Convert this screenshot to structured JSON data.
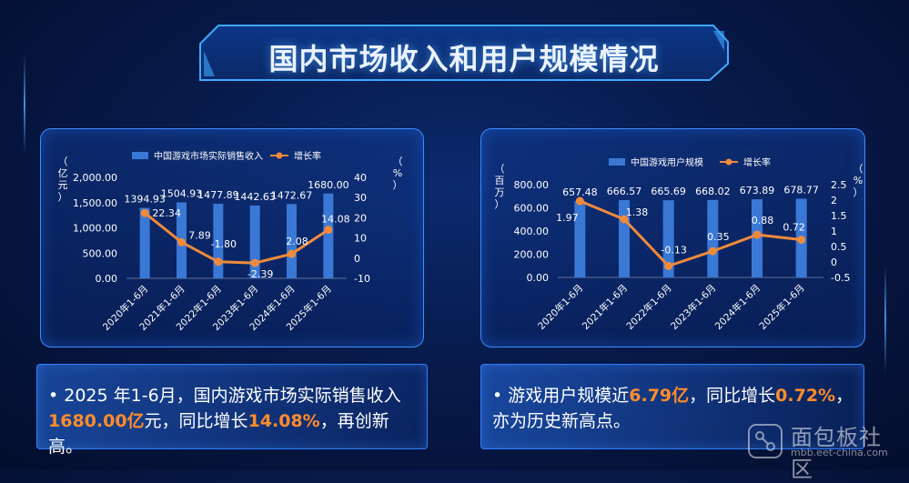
{
  "page": {
    "title": "国内市场收入和用户规模情况"
  },
  "chart_data": [
    {
      "type": "bar",
      "categories": [
        "2020年1-6月",
        "2021年1-6月",
        "2022年1-6月",
        "2023年1-6月",
        "2024年1-6月",
        "2025年1-6月"
      ],
      "series": [
        {
          "name": "中国游戏市场实际销售收入",
          "type": "bar",
          "axis": "left",
          "values": [
            1394.93,
            1504.93,
            1477.89,
            1442.63,
            1472.67,
            1680.0
          ],
          "labels": [
            "1394.93",
            "1504.93",
            "1477.89",
            "1442.63",
            "1472.67",
            "1680.00"
          ]
        },
        {
          "name": "增长率",
          "type": "line",
          "axis": "right",
          "values": [
            22.34,
            7.89,
            -1.8,
            -2.39,
            2.08,
            14.08
          ],
          "labels": [
            "22.34",
            "7.89",
            "-1.80",
            "-2.39",
            "2.08",
            "14.08"
          ]
        }
      ],
      "ylabel": "（亿元）",
      "y2label": "（%）",
      "ylim": [
        0,
        2000
      ],
      "yticks": [
        "2,000.00",
        "1,500.00",
        "1,000.00",
        "500.00",
        "0.00"
      ],
      "y2lim": [
        -10,
        40
      ],
      "y2ticks": [
        "40",
        "30",
        "20",
        "10",
        "0",
        "-10"
      ],
      "legend": "top",
      "colors": {
        "bar": "#3a78d6",
        "line": "#f08a3a"
      }
    },
    {
      "type": "bar",
      "categories": [
        "2020年1-6月",
        "2021年1-6月",
        "2022年1-6月",
        "2023年1-6月",
        "2024年1-6月",
        "2025年1-6月"
      ],
      "series": [
        {
          "name": "中国游戏用户规模",
          "type": "bar",
          "axis": "left",
          "values": [
            657.48,
            666.57,
            665.69,
            668.02,
            673.89,
            678.77
          ],
          "labels": [
            "657.48",
            "666.57",
            "665.69",
            "668.02",
            "673.89",
            "678.77"
          ]
        },
        {
          "name": "增长率",
          "type": "line",
          "axis": "right",
          "values": [
            1.97,
            1.38,
            -0.13,
            0.35,
            0.88,
            0.72
          ],
          "labels": [
            "1.97",
            "1.38",
            "-0.13",
            "0.35",
            "0.88",
            "0.72"
          ]
        }
      ],
      "ylabel": "（百万）",
      "y2label": "（%）",
      "ylim": [
        0,
        800
      ],
      "yticks": [
        "800.00",
        "600.00",
        "400.00",
        "200.00",
        "0.00"
      ],
      "y2lim": [
        -0.5,
        2.5
      ],
      "y2ticks": [
        "2.5",
        "2",
        "1.5",
        "1",
        "0.5",
        "0",
        "-0.5"
      ],
      "legend": "top",
      "colors": {
        "bar": "#3a78d6",
        "line": "#f08a3a"
      }
    }
  ],
  "notes": {
    "left": {
      "bullet": "•",
      "p1": " 2025 年1-6月，国内游戏市场实际销售收入 ",
      "h1": "1680.00亿",
      "p2": "元，同比增长",
      "h2": "14.08%",
      "p3": "，再创新高。"
    },
    "right": {
      "bullet": "•",
      "p1": " 游戏用户规模近",
      "h1": "6.79亿",
      "p2": "，同比增长",
      "h2": "0.72%",
      "p3": "，亦为历史新高点。"
    }
  },
  "watermark": {
    "title": "面包板社区",
    "url": "mbb.eet-china.com"
  }
}
